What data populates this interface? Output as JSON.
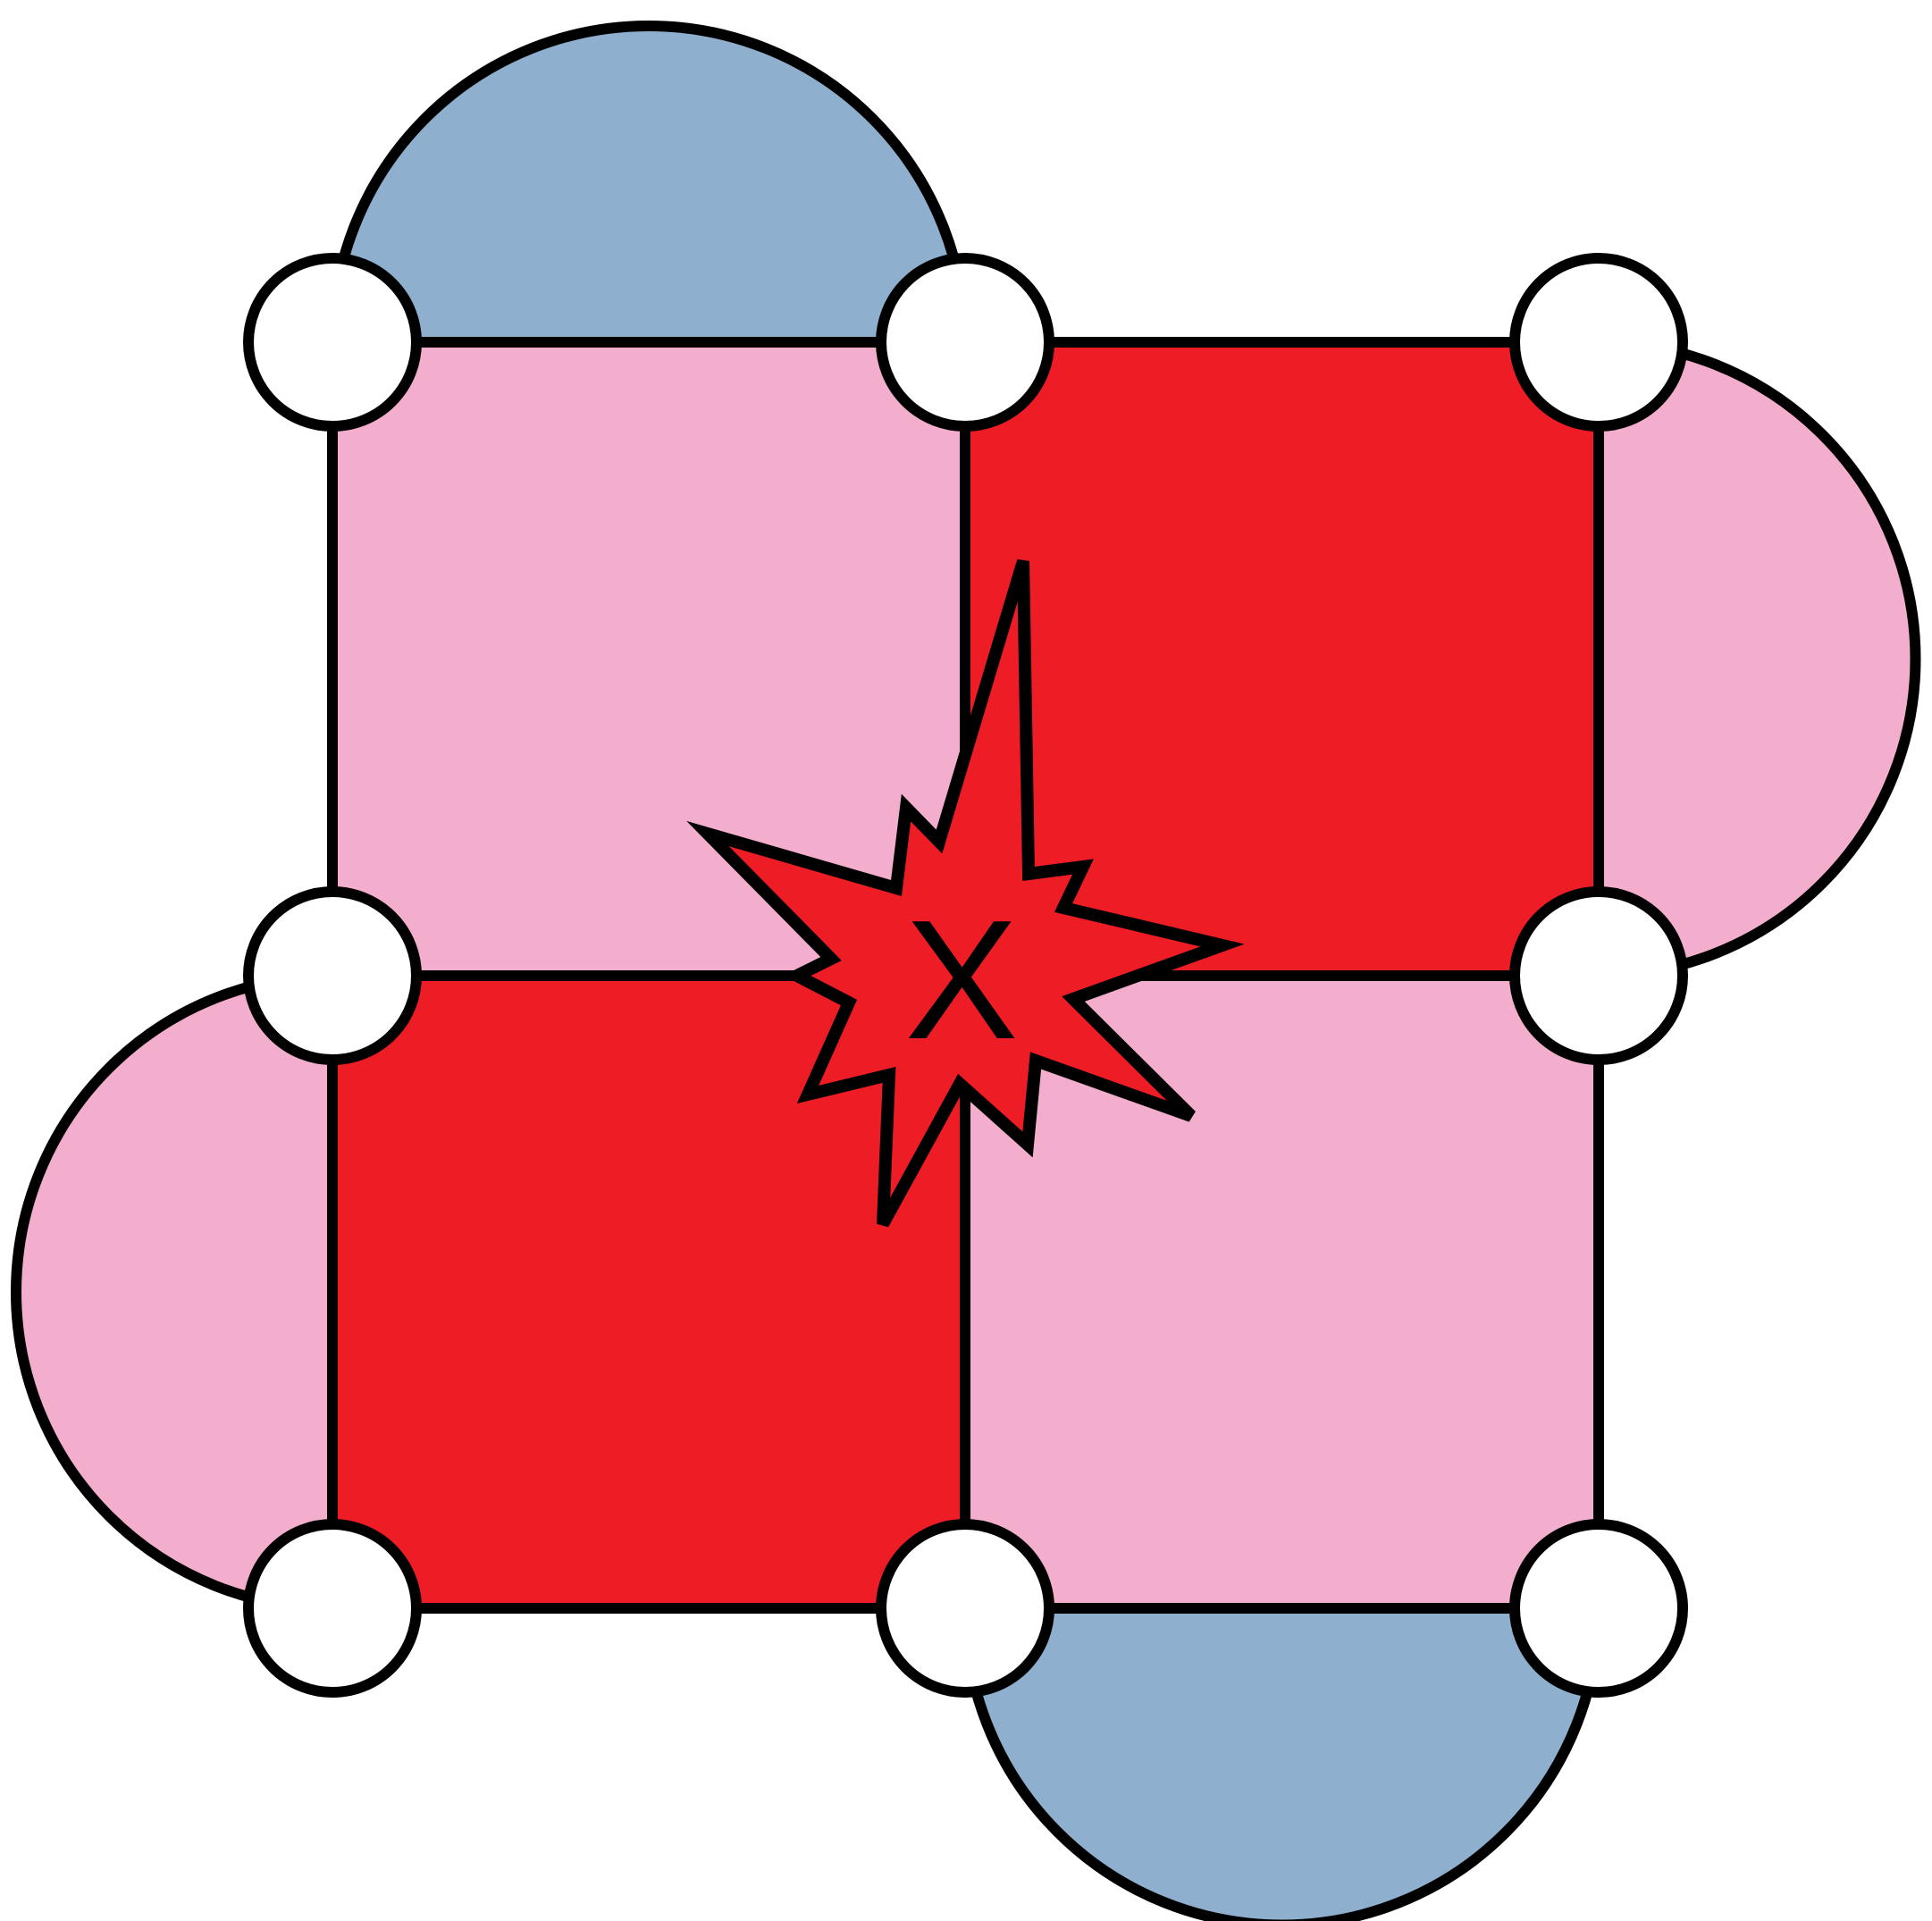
{
  "diagram": {
    "center_label": "X",
    "colors": {
      "pink": "#f4aecd",
      "red": "#ed1c25",
      "blue": "#8eafcd",
      "outline": "#000000",
      "node_fill": "#ffffff"
    },
    "grid": {
      "squares": [
        {
          "name": "square-top-left",
          "color": "pink"
        },
        {
          "name": "square-top-right",
          "color": "red"
        },
        {
          "name": "square-bottom-left",
          "color": "red"
        },
        {
          "name": "square-bottom-right",
          "color": "pink"
        }
      ],
      "half_discs": [
        {
          "name": "half-disc-top",
          "color": "blue"
        },
        {
          "name": "half-disc-right",
          "color": "pink"
        },
        {
          "name": "half-disc-left",
          "color": "pink"
        },
        {
          "name": "half-disc-bottom",
          "color": "blue"
        }
      ],
      "node_count": 9
    }
  }
}
